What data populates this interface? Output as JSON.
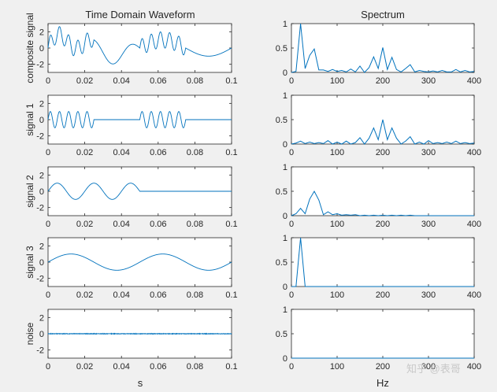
{
  "chart_data": {
    "type": "line",
    "line_color": "#0072bd",
    "grid": false,
    "time_domain": {
      "title": "Time Domain Waveform",
      "xlabel": "s",
      "xlim": [
        0,
        0.1
      ],
      "xticks": [
        0,
        0.02,
        0.04,
        0.06,
        0.08,
        0.1
      ],
      "xtick_labels": [
        "0",
        "0.02",
        "0.04",
        "0.06",
        "0.08",
        "0.1"
      ],
      "ylim": [
        -3,
        3
      ],
      "yticks": [
        -2,
        0,
        2
      ],
      "ytick_labels": [
        "-2",
        "0",
        "2"
      ],
      "composite_ylim": [
        -3,
        3
      ],
      "composite_yticks": [
        -2,
        0,
        2
      ],
      "composite_ytick_labels": [
        "-2",
        "0",
        "2"
      ]
    },
    "spectrum": {
      "title": "Spectrum",
      "xlabel": "Hz",
      "xlim": [
        0,
        400
      ],
      "xticks": [
        0,
        100,
        200,
        300,
        400
      ],
      "xtick_labels": [
        "0",
        "100",
        "200",
        "300",
        "400"
      ],
      "ylim": [
        0,
        1
      ],
      "yticks": [
        0,
        0.5,
        1
      ],
      "ytick_labels": [
        "0",
        "0.5",
        "1"
      ]
    },
    "rows": [
      {
        "ylabel": "composite signal",
        "signal_components": {
          "burst_200hz": {
            "amplitude": 1,
            "frequency_hz": 200,
            "windows_s": [
              [
                0,
                0.025
              ],
              [
                0.05,
                0.075
              ]
            ]
          },
          "tone_50hz": {
            "amplitude": 1,
            "frequency_hz": 50,
            "window_s": [
              0,
              0.05
            ]
          },
          "tone_20hz": {
            "amplitude": 1,
            "frequency_hz": 20,
            "window_s": [
              0,
              0.1
            ]
          }
        },
        "spectrum_peaks": {
          "hz": [
            0,
            10,
            20,
            30,
            40,
            50,
            60,
            70,
            80,
            90,
            100,
            110,
            120,
            130,
            140,
            150,
            160,
            170,
            180,
            190,
            200,
            210,
            220,
            230,
            240,
            250,
            260,
            270,
            280,
            290,
            300,
            310,
            320,
            330,
            340,
            350,
            360,
            370,
            380,
            390,
            400
          ],
          "magnitude": [
            0,
            0.02,
            1.0,
            0.08,
            0.35,
            0.48,
            0.05,
            0.05,
            0.02,
            0.06,
            0.02,
            0.04,
            0.01,
            0.07,
            0.01,
            0.13,
            0.0,
            0.1,
            0.32,
            0.08,
            0.51,
            0.06,
            0.31,
            0.06,
            0.01,
            0.08,
            0.16,
            0.01,
            0.04,
            0.02,
            0.01,
            0.03,
            0.01,
            0.04,
            0.01,
            0.01,
            0.06,
            0.01,
            0.04,
            0.01,
            0.02
          ]
        }
      },
      {
        "ylabel": "signal 1",
        "signal": {
          "amplitude": 1,
          "frequency_hz": 200,
          "windows_s": [
            [
              0,
              0.025
            ],
            [
              0.05,
              0.075
            ]
          ]
        },
        "spectrum_peaks": {
          "hz": [
            0,
            10,
            20,
            30,
            40,
            50,
            60,
            70,
            80,
            90,
            100,
            110,
            120,
            130,
            140,
            150,
            160,
            170,
            180,
            190,
            200,
            210,
            220,
            230,
            240,
            250,
            260,
            270,
            280,
            290,
            300,
            310,
            320,
            330,
            340,
            350,
            360,
            370,
            380,
            390,
            400
          ],
          "magnitude": [
            0,
            0.02,
            0.06,
            0.01,
            0.04,
            0.01,
            0.03,
            0.01,
            0.07,
            0.0,
            0.04,
            0.0,
            0.06,
            0.0,
            0.03,
            0.13,
            0.0,
            0.12,
            0.33,
            0.09,
            0.5,
            0.09,
            0.33,
            0.12,
            0.0,
            0.06,
            0.15,
            0.0,
            0.04,
            0.0,
            0.07,
            0.01,
            0.03,
            0.01,
            0.04,
            0.01,
            0.06,
            0.01,
            0.03,
            0.01,
            0.02
          ]
        }
      },
      {
        "ylabel": "signal 2",
        "signal": {
          "amplitude": 1,
          "frequency_hz": 50,
          "window_s": [
            0,
            0.05
          ]
        },
        "spectrum_peaks": {
          "hz": [
            0,
            10,
            20,
            30,
            40,
            50,
            60,
            70,
            80,
            90,
            100,
            110,
            120,
            130,
            140,
            150,
            160,
            170,
            180,
            190,
            200,
            210,
            220,
            230,
            240,
            250,
            260,
            270,
            280,
            290,
            300,
            310,
            320,
            330,
            340,
            350,
            360,
            370,
            380,
            390,
            400
          ],
          "magnitude": [
            0.0,
            0.04,
            0.15,
            0.04,
            0.34,
            0.5,
            0.32,
            0.02,
            0.08,
            0.02,
            0.04,
            0.01,
            0.02,
            0.01,
            0.02,
            0.0,
            0.01,
            0.0,
            0.01,
            0.0,
            0.01,
            0.0,
            0.01,
            0.0,
            0.01,
            0.0,
            0.01,
            0.0,
            0.0,
            0.0,
            0.0,
            0.0,
            0.0,
            0.0,
            0.0,
            0.0,
            0.0,
            0.0,
            0.0,
            0.0,
            0.0
          ]
        }
      },
      {
        "ylabel": "signal 3",
        "signal": {
          "amplitude": 1,
          "frequency_hz": 20,
          "window_s": [
            0,
            0.1
          ]
        },
        "spectrum_peaks": {
          "hz": [
            0,
            10,
            20,
            30,
            40,
            50,
            100,
            150,
            200,
            250,
            300,
            350,
            400
          ],
          "magnitude": [
            0,
            0,
            1.0,
            0,
            0,
            0,
            0,
            0,
            0,
            0,
            0,
            0,
            0
          ]
        }
      },
      {
        "ylabel": "noise",
        "signal": {
          "type": "noise",
          "amplitude": 0.03
        },
        "spectrum_peaks": {
          "hz": [
            0,
            10,
            20,
            30,
            40,
            50,
            100,
            150,
            200,
            250,
            300,
            350,
            400
          ],
          "magnitude": [
            0,
            0,
            0,
            0,
            0,
            0,
            0,
            0,
            0,
            0,
            0,
            0,
            0
          ]
        }
      }
    ]
  },
  "watermark": "知乎 @表哥"
}
